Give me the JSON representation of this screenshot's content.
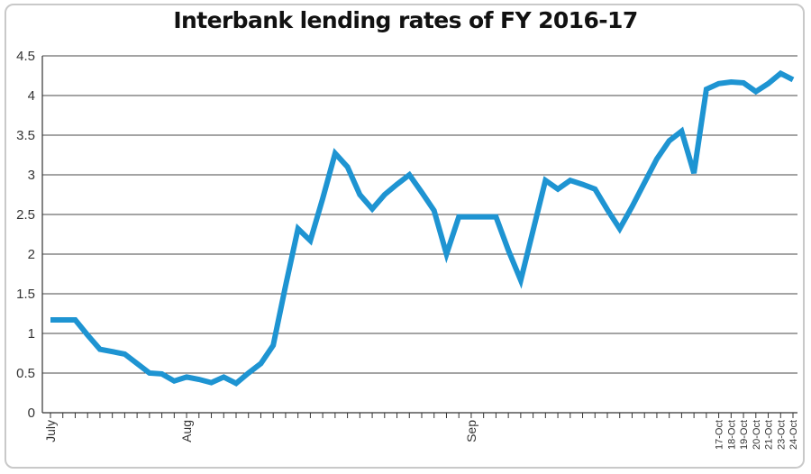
{
  "chart_data": {
    "type": "line",
    "title": "Interbank lending rates of FY 2016-17",
    "xlabel": "",
    "ylabel": "",
    "ylim": [
      0,
      4.5
    ],
    "yticks": [
      "0",
      "0.5",
      "1",
      "1.5",
      "2",
      "2.5",
      "3",
      "3.5",
      "4",
      "4.5"
    ],
    "grid": true,
    "legend": "none",
    "line_color": "#1e94d2",
    "x_labels": [
      {
        "label": "July",
        "index": 0
      },
      {
        "label": "Aug",
        "index": 11
      },
      {
        "label": "Sep",
        "index": 34
      },
      {
        "label": "17-Oct",
        "index": 54
      },
      {
        "label": "18-Oct",
        "index": 55
      },
      {
        "label": "19-Oct",
        "index": 56
      },
      {
        "label": "20-Oct",
        "index": 57
      },
      {
        "label": "21-Oct",
        "index": 58
      },
      {
        "label": "23-Oct",
        "index": 59
      },
      {
        "label": "24-Oct",
        "index": 60
      }
    ],
    "series": [
      {
        "values": [
          1.17,
          1.17,
          1.17,
          0.98,
          0.8,
          0.77,
          0.74,
          0.62,
          0.5,
          0.49,
          0.4,
          0.45,
          0.42,
          0.38,
          0.45,
          0.37,
          0.5,
          0.62,
          0.85,
          1.6,
          2.32,
          2.17,
          2.7,
          3.27,
          3.1,
          2.75,
          2.57,
          2.75,
          2.88,
          3.0,
          2.78,
          2.55,
          2.0,
          2.47,
          2.47,
          2.47,
          2.47,
          2.05,
          1.67,
          2.3,
          2.93,
          2.82,
          2.93,
          2.88,
          2.82,
          2.56,
          2.32,
          2.6,
          2.9,
          3.2,
          3.43,
          3.55,
          3.02,
          4.08,
          4.15,
          4.17,
          4.16,
          4.05,
          4.15,
          4.28,
          4.2
        ]
      }
    ]
  }
}
